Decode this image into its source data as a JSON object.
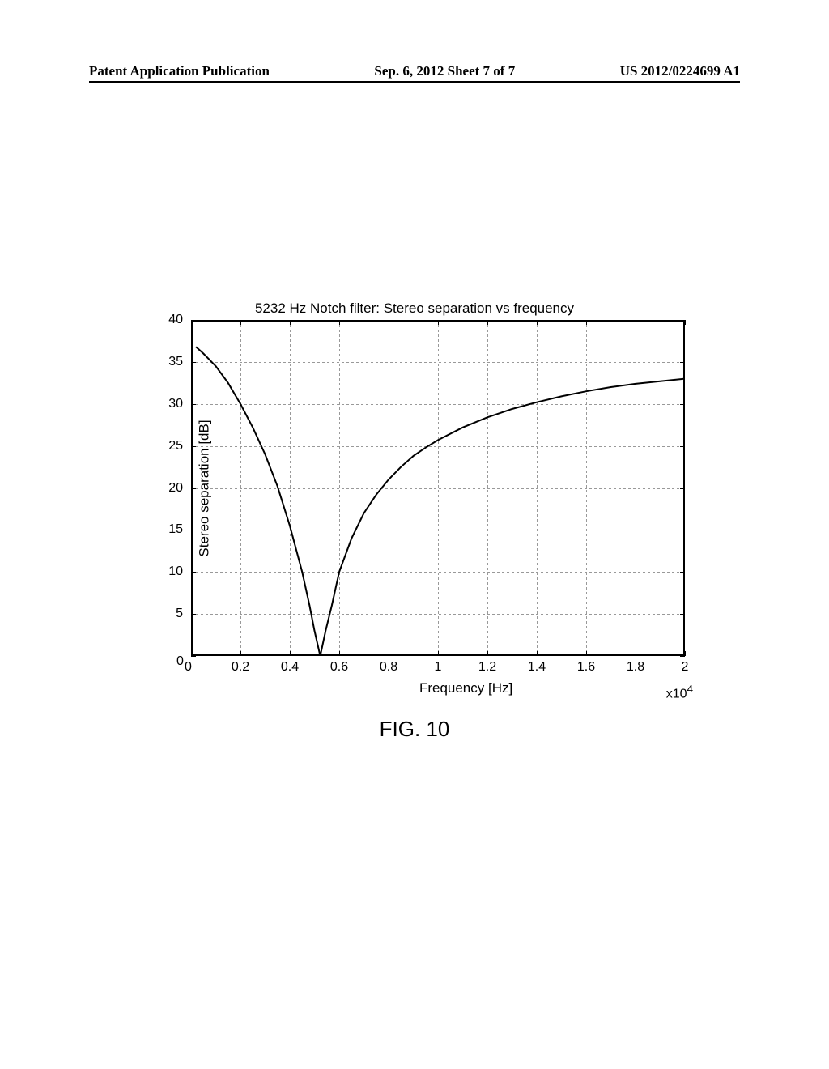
{
  "header": {
    "left": "Patent Application Publication",
    "center": "Sep. 6, 2012  Sheet 7 of 7",
    "right": "US 2012/0224699 A1"
  },
  "chart": {
    "type": "line",
    "title": "5232 Hz Notch filter: Stereo separation vs frequency",
    "xlabel": "Frequency [Hz]",
    "ylabel": "Stereo separation [dB]",
    "x_exponent": "x10",
    "x_exponent_sup": "4",
    "xlim": [
      0,
      2
    ],
    "ylim": [
      0,
      40
    ],
    "xticks": [
      "0",
      "0.2",
      "0.4",
      "0.6",
      "0.8",
      "1",
      "1.2",
      "1.4",
      "1.6",
      "1.8",
      "2"
    ],
    "yticks": [
      "0",
      "5",
      "10",
      "15",
      "20",
      "25",
      "30",
      "35",
      "40"
    ],
    "grid_color": "#999999",
    "line_color": "#000000",
    "background_color": "#ffffff",
    "line_width": 2,
    "notch_x": 0.5232,
    "curve_points": [
      [
        0.02,
        36.8
      ],
      [
        0.05,
        36.0
      ],
      [
        0.1,
        34.5
      ],
      [
        0.15,
        32.5
      ],
      [
        0.2,
        30.0
      ],
      [
        0.25,
        27.2
      ],
      [
        0.3,
        24.0
      ],
      [
        0.35,
        20.2
      ],
      [
        0.4,
        15.5
      ],
      [
        0.45,
        10.0
      ],
      [
        0.48,
        6.0
      ],
      [
        0.5,
        3.0
      ],
      [
        0.5232,
        0.0
      ],
      [
        0.545,
        3.0
      ],
      [
        0.57,
        6.0
      ],
      [
        0.6,
        10.0
      ],
      [
        0.65,
        14.0
      ],
      [
        0.7,
        17.0
      ],
      [
        0.75,
        19.2
      ],
      [
        0.8,
        21.0
      ],
      [
        0.85,
        22.5
      ],
      [
        0.9,
        23.8
      ],
      [
        0.95,
        24.8
      ],
      [
        1.0,
        25.7
      ],
      [
        1.1,
        27.2
      ],
      [
        1.2,
        28.4
      ],
      [
        1.3,
        29.4
      ],
      [
        1.4,
        30.2
      ],
      [
        1.5,
        30.9
      ],
      [
        1.6,
        31.5
      ],
      [
        1.7,
        32.0
      ],
      [
        1.8,
        32.4
      ],
      [
        1.9,
        32.7
      ],
      [
        2.0,
        33.0
      ]
    ]
  },
  "figure_label": "FIG. 10"
}
